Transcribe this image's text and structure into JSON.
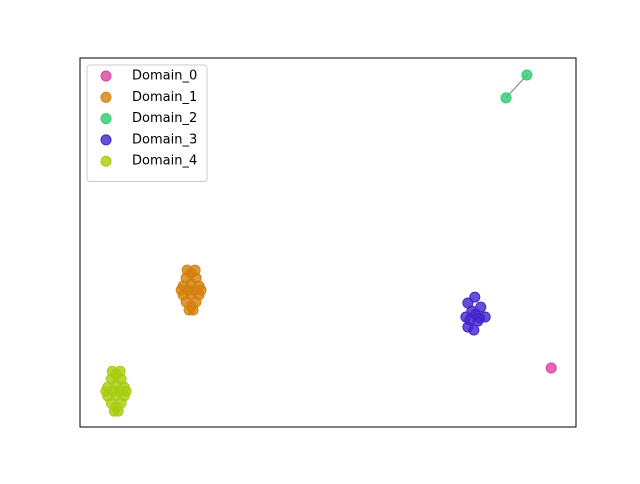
{
  "chart_data": {
    "type": "scatter",
    "legend": "upper left",
    "xlim": [
      0,
      100
    ],
    "ylim": [
      0,
      100
    ],
    "series": [
      {
        "name": "Domain_0",
        "color": "#d9439f",
        "x": [
          95.0
        ],
        "values": [
          16.0
        ]
      },
      {
        "name": "Domain_1",
        "color": "#d4800c",
        "x": [
          22.4,
          21.4,
          23.4,
          20.8,
          22.4,
          24.0,
          20.8,
          22.4,
          24.0,
          21.4,
          23.4,
          22.4,
          21.8,
          23.0,
          21.6,
          23.2,
          22.0,
          22.8,
          20.4,
          24.4
        ],
        "values": [
          41.7,
          40.4,
          40.4,
          38.2,
          38.8,
          38.2,
          35.8,
          36.0,
          35.8,
          33.9,
          33.9,
          32.8,
          37.1,
          37.1,
          42.5,
          42.5,
          31.7,
          31.7,
          37.1,
          37.1
        ]
      },
      {
        "name": "Domain_2",
        "color": "#2ecc71",
        "connected": true,
        "x": [
          85.9,
          90.1
        ],
        "values": [
          89.2,
          95.4
        ]
      },
      {
        "name": "Domain_3",
        "color": "#4224cc",
        "x": [
          78.2,
          79.6,
          80.8,
          81.7,
          80.2,
          79.4,
          78.2,
          77.8,
          79.0,
          79.8,
          78.6,
          80.6
        ],
        "values": [
          33.6,
          35.2,
          32.5,
          29.8,
          28.7,
          26.3,
          27.1,
          29.8,
          31.4,
          30.6,
          29.0,
          29.5
        ]
      },
      {
        "name": "Domain_4",
        "color": "#a8cc0e",
        "x": [
          7.3,
          6.3,
          8.3,
          5.6,
          7.3,
          8.9,
          5.6,
          7.3,
          8.9,
          6.3,
          8.3,
          7.3,
          6.7,
          7.9,
          6.5,
          8.1,
          6.9,
          7.7,
          5.2,
          9.3
        ],
        "values": [
          14.3,
          13.0,
          13.0,
          10.8,
          11.4,
          10.8,
          8.4,
          8.6,
          8.4,
          6.5,
          6.5,
          5.4,
          9.7,
          9.7,
          15.1,
          15.1,
          4.3,
          4.3,
          9.7,
          9.7
        ]
      }
    ]
  }
}
